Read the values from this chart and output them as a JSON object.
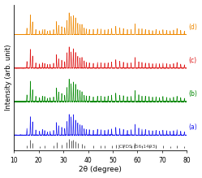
{
  "xlabel": "2θ (degree)",
  "ylabel": "Intensity (arb. unit)",
  "xlim": [
    10,
    80
  ],
  "x_ticks": [
    10,
    20,
    30,
    40,
    50,
    60,
    70,
    80
  ],
  "labels": [
    "(a)",
    "(b)",
    "(c)",
    "(d)"
  ],
  "jcpds_label": "JCPDS (56-1493)",
  "colors": [
    "#1a1aee",
    "#008800",
    "#dd1111",
    "#ee8800"
  ],
  "jcpds_color": "#444444",
  "offsets": [
    0.08,
    0.28,
    0.48,
    0.68
  ],
  "figsize": [
    2.49,
    2.19
  ],
  "dpi": 100,
  "peak_positions": [
    15.2,
    16.6,
    17.5,
    18.8,
    20.3,
    21.5,
    22.4,
    23.5,
    24.6,
    26.0,
    27.2,
    28.1,
    29.3,
    30.5,
    31.4,
    32.3,
    33.1,
    34.0,
    34.9,
    35.8,
    36.7,
    37.5,
    38.4,
    39.3,
    40.5,
    42.1,
    43.8,
    45.2,
    46.7,
    48.1,
    49.5,
    51.2,
    52.8,
    54.3,
    55.9,
    57.4,
    59.0,
    60.5,
    61.8,
    63.2,
    64.7,
    66.1,
    67.5,
    68.9,
    70.3,
    71.8,
    73.2,
    74.6,
    76.0,
    77.5,
    79.0
  ],
  "peak_heights": [
    0.25,
    0.7,
    0.45,
    0.2,
    0.15,
    0.2,
    0.18,
    0.12,
    0.15,
    0.18,
    0.5,
    0.35,
    0.3,
    0.25,
    0.55,
    0.8,
    0.65,
    0.72,
    0.6,
    0.45,
    0.4,
    0.38,
    0.25,
    0.22,
    0.2,
    0.18,
    0.22,
    0.2,
    0.18,
    0.2,
    0.22,
    0.3,
    0.25,
    0.22,
    0.18,
    0.2,
    0.4,
    0.25,
    0.22,
    0.2,
    0.18,
    0.16,
    0.18,
    0.15,
    0.18,
    0.16,
    0.14,
    0.16,
    0.2,
    0.15,
    0.12
  ],
  "jcpds_positions": [
    15.2,
    16.6,
    17.5,
    20.3,
    22.4,
    26.0,
    27.2,
    29.3,
    31.4,
    32.3,
    33.1,
    34.0,
    34.9,
    35.8,
    37.5,
    38.4,
    42.1,
    45.2,
    46.7,
    49.5,
    51.2,
    54.3,
    57.4,
    59.0,
    61.8,
    64.7,
    67.5,
    70.3,
    73.2,
    76.0,
    79.0
  ],
  "jcpds_heights": [
    0.3,
    0.9,
    0.55,
    0.18,
    0.22,
    0.22,
    0.6,
    0.35,
    0.65,
    0.95,
    0.78,
    0.85,
    0.72,
    0.52,
    0.45,
    0.3,
    0.22,
    0.25,
    0.22,
    0.27,
    0.35,
    0.27,
    0.25,
    0.48,
    0.27,
    0.22,
    0.22,
    0.22,
    0.18,
    0.25,
    0.15
  ]
}
